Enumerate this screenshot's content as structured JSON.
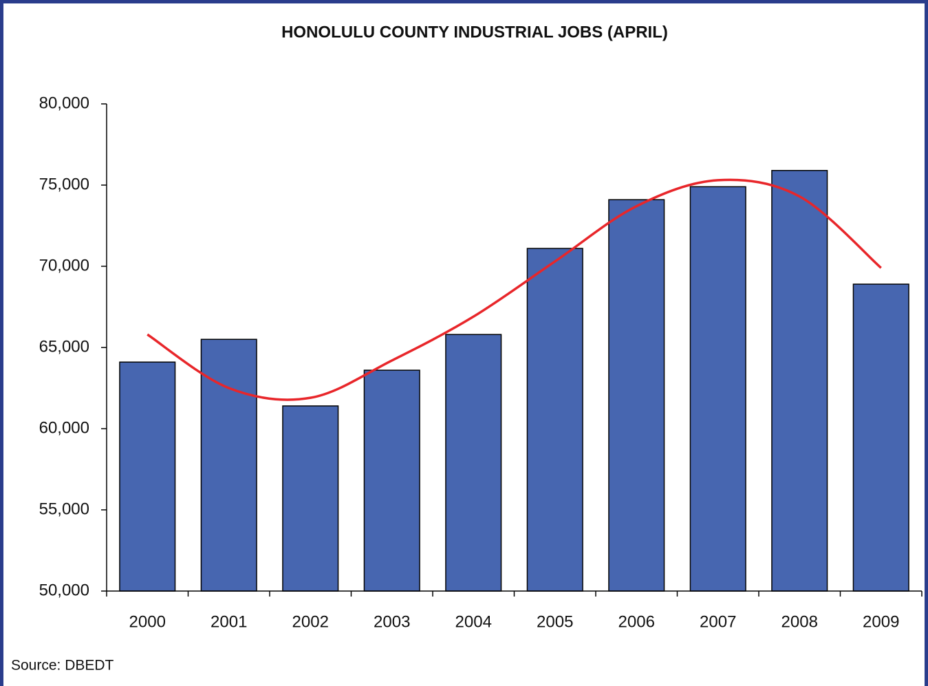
{
  "chart_data": {
    "type": "bar",
    "title": "HONOLULU COUNTY INDUSTRIAL JOBS (APRIL)",
    "source": "Source: DBEDT",
    "categories": [
      "2000",
      "2001",
      "2002",
      "2003",
      "2004",
      "2005",
      "2006",
      "2007",
      "2008",
      "2009"
    ],
    "values": [
      64100,
      65500,
      61400,
      63600,
      65800,
      71100,
      74100,
      74900,
      75900,
      68900
    ],
    "color": "#4766b0",
    "trend": {
      "type": "line",
      "color": "#e8262a",
      "values": [
        65800,
        62500,
        61900,
        64200,
        66900,
        70300,
        73700,
        75300,
        74300,
        69900
      ]
    },
    "ylim": [
      50000,
      80000
    ],
    "yticks": [
      {
        "value": 50000,
        "label": "50,000"
      },
      {
        "value": 55000,
        "label": "55,000"
      },
      {
        "value": 60000,
        "label": "60,000"
      },
      {
        "value": 65000,
        "label": "65,000"
      },
      {
        "value": 70000,
        "label": "70,000"
      },
      {
        "value": 75000,
        "label": "75,000"
      },
      {
        "value": 80000,
        "label": "80,000"
      }
    ],
    "grid": false
  }
}
